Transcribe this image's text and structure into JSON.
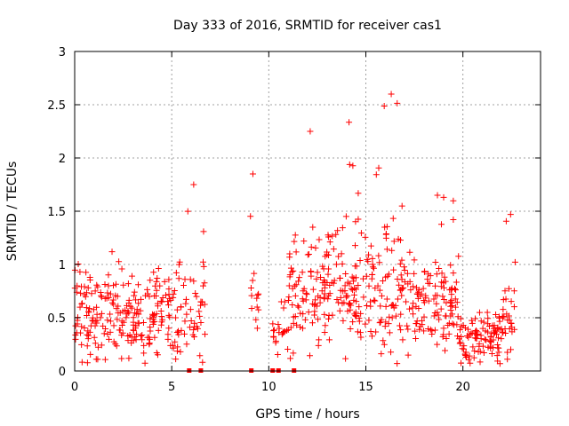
{
  "chart_data": {
    "type": "scatter",
    "title": "Day 333 of 2016, SRMTID for receiver cas1",
    "xlabel": "GPS time / hours",
    "ylabel": "SRMTID / TECUs",
    "xlim": [
      0,
      24
    ],
    "ylim": [
      0,
      3
    ],
    "x_ticks": [
      0,
      5,
      10,
      15,
      20
    ],
    "x_tick_labels": [
      "0",
      "5",
      "10",
      "15",
      "20"
    ],
    "y_ticks": [
      0,
      0.5,
      1,
      1.5,
      2,
      2.5,
      3
    ],
    "y_tick_labels": [
      "0",
      "0.5",
      "1",
      "1.5",
      "2",
      "2.5",
      "3"
    ],
    "grid": true,
    "marker": "+",
    "marker_color": "#ff0000",
    "zero_markers": [
      5.9,
      6.5,
      9.1,
      10.2,
      10.5,
      11.3
    ],
    "series": [
      {
        "name": "SRMTID",
        "color": "#ff0000",
        "clusters": [
          {
            "x_start": 0.0,
            "x_end": 5.5,
            "y_base": 0.5,
            "y_spread": 0.35,
            "peak": 1.12,
            "density": 45
          },
          {
            "x_start": 5.5,
            "x_end": 6.8,
            "y_base": 0.55,
            "y_spread": 0.4,
            "peak": 1.75,
            "density": 30
          },
          {
            "x_start": 9.0,
            "x_end": 9.5,
            "y_base": 0.7,
            "y_spread": 0.3,
            "peak": 1.85,
            "density": 25
          },
          {
            "x_start": 10.2,
            "x_end": 11.0,
            "y_base": 0.35,
            "y_spread": 0.2,
            "peak": 0.65,
            "density": 25
          },
          {
            "x_start": 11.0,
            "x_end": 14.0,
            "y_base": 0.75,
            "y_spread": 0.45,
            "peak": 2.25,
            "density": 45
          },
          {
            "x_start": 14.0,
            "x_end": 17.5,
            "y_base": 0.75,
            "y_spread": 0.5,
            "peak": 2.6,
            "density": 45
          },
          {
            "x_start": 17.5,
            "x_end": 19.8,
            "y_base": 0.6,
            "y_spread": 0.35,
            "peak": 1.65,
            "density": 45
          },
          {
            "x_start": 19.8,
            "x_end": 22.0,
            "y_base": 0.3,
            "y_spread": 0.18,
            "peak": 0.55,
            "density": 45
          },
          {
            "x_start": 22.0,
            "x_end": 22.7,
            "y_base": 0.45,
            "y_spread": 0.3,
            "peak": 1.47,
            "density": 45
          }
        ]
      }
    ]
  }
}
